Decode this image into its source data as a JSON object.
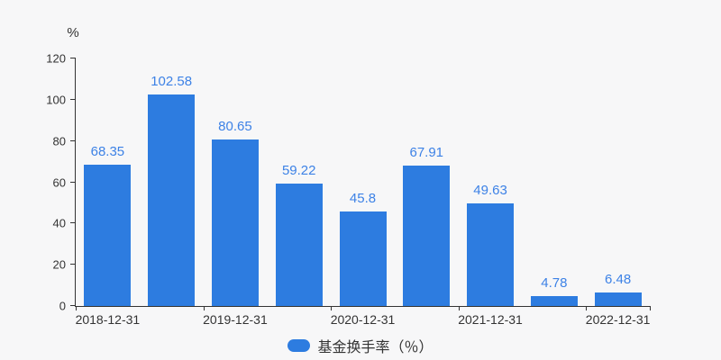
{
  "chart_data": {
    "type": "bar",
    "title": "",
    "values": [
      68.35,
      102.58,
      80.65,
      59.22,
      45.8,
      67.91,
      49.63,
      4.78,
      6.48
    ],
    "value_labels": [
      "68.35",
      "102.58",
      "80.65",
      "59.22",
      "45.8",
      "67.91",
      "49.63",
      "4.78",
      "6.48"
    ],
    "x_tick_labels": [
      "2018-12-31",
      "2019-12-31",
      "2020-12-31",
      "2021-12-31",
      "2022-12-31"
    ],
    "x_label_category_indices": [
      0,
      2,
      4,
      6,
      8
    ],
    "x_tick_boundary_indices": [
      0,
      2,
      4,
      6,
      8,
      9
    ],
    "ylim": [
      0,
      120
    ],
    "y_tick_step": 20,
    "y_tick_labels": [
      "0",
      "20",
      "40",
      "60",
      "80",
      "100",
      "120"
    ],
    "ylabel_unit": "%",
    "xlabel": "",
    "ylabel": "",
    "grid": false,
    "legend": [
      "基金换手率（％）"
    ],
    "legend_position": "bottom",
    "bar_color": "#2d7ce0",
    "value_label_color": "#3d82e6",
    "axis_color": "#333333",
    "background_color": "#f7f7f8"
  }
}
